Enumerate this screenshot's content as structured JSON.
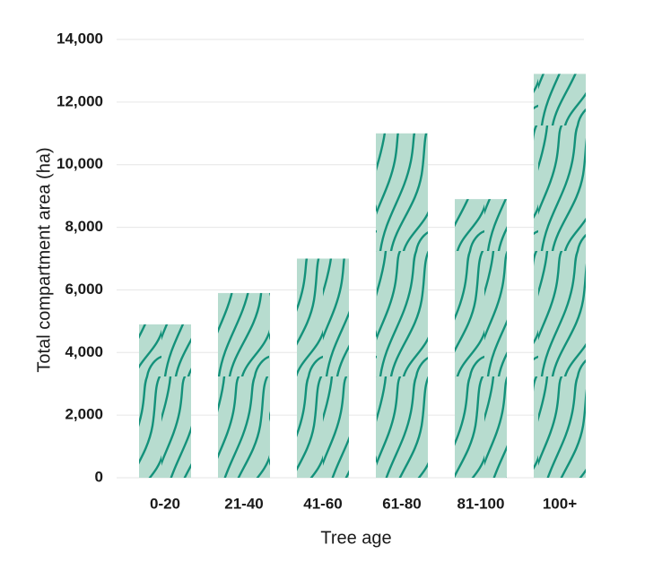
{
  "chart_data": {
    "type": "bar",
    "x_label": "Tree age",
    "y_label": "Total compartment area (ha)",
    "categories": [
      "0-20",
      "21-40",
      "41-60",
      "61-80",
      "81-100",
      "100+"
    ],
    "values": [
      4900,
      5900,
      7000,
      11000,
      8900,
      12900
    ],
    "color": "#b7dccf",
    "ylim": [
      0,
      14000
    ],
    "yticks": [
      0,
      {
        "value": 2000,
        "label": "2,000"
      },
      {
        "value": 4000,
        "label": "4,000"
      },
      {
        "value": 6000,
        "label": "6,000"
      },
      {
        "value": 8000,
        "label": "8,000"
      },
      {
        "value": 10000,
        "label": "10,000"
      },
      {
        "value": 12000,
        "label": "12,000"
      },
      {
        "value": 14000,
        "label": "14,000"
      }
    ],
    "grid": true
  }
}
